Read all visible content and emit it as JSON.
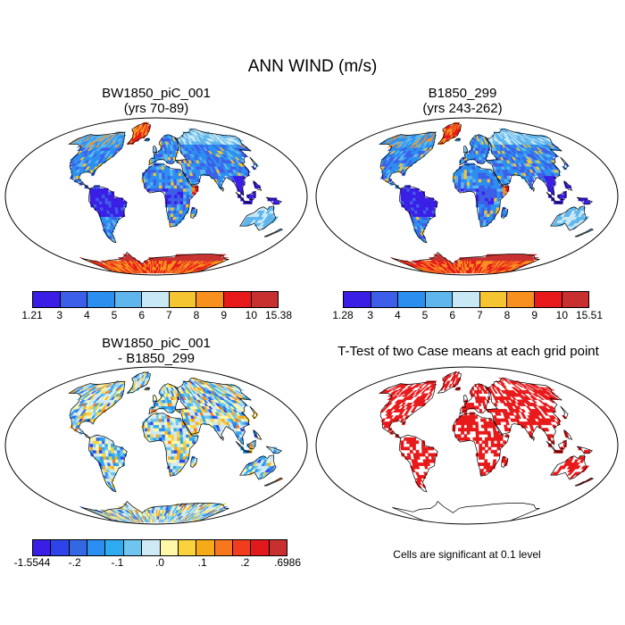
{
  "title": "ANN WIND (m/s)",
  "panels": {
    "top_left": {
      "title_line1": "BW1850_piC_001",
      "title_line2": "(yrs 70-89)"
    },
    "top_right": {
      "title_line1": "B1850_299",
      "title_line2": "(yrs 243-262)"
    },
    "bottom_left": {
      "title_line1": "BW1850_piC_001",
      "title_line2": "- B1850_299"
    },
    "bottom_right": {
      "title_line1": "T-Test of two Case means at each grid point"
    }
  },
  "colorbars": {
    "top_left": {
      "colors": [
        "#3a1ee6",
        "#3d5ee8",
        "#2b8ff0",
        "#5fb6ec",
        "#c8e8f5",
        "#f5c431",
        "#f7901e",
        "#e8191a",
        "#c8302f"
      ],
      "labels": [
        "1.21",
        "3",
        "4",
        "5",
        "6",
        "7",
        "8",
        "9",
        "10",
        "15.38"
      ]
    },
    "top_right": {
      "colors": [
        "#3a1ee6",
        "#3d5ee8",
        "#2b8ff0",
        "#5fb6ec",
        "#c8e8f5",
        "#f5c431",
        "#f7901e",
        "#e8191a",
        "#c8302f"
      ],
      "labels": [
        "1.28",
        "3",
        "4",
        "5",
        "6",
        "7",
        "8",
        "9",
        "10",
        "15.51"
      ]
    },
    "bottom_left": {
      "colors": [
        "#3a1ee6",
        "#2e44ea",
        "#3468e3",
        "#2c8ef0",
        "#2eaaf0",
        "#6ec6f0",
        "#cfeaf5",
        "#fff8a8",
        "#fad23c",
        "#f7aa18",
        "#f7781c",
        "#f23c1e",
        "#e1191c",
        "#c8302f"
      ],
      "labels": [
        "-1.5544",
        "-.2",
        "-.1",
        ".0",
        ".1",
        ".2",
        ".6986"
      ]
    }
  },
  "note": "Cells are significant at 0.1 level",
  "colors": {
    "ocean": "#ffffff",
    "land_base": "#2e8ff0",
    "significant": "#e8191a",
    "outline": "#000000"
  }
}
